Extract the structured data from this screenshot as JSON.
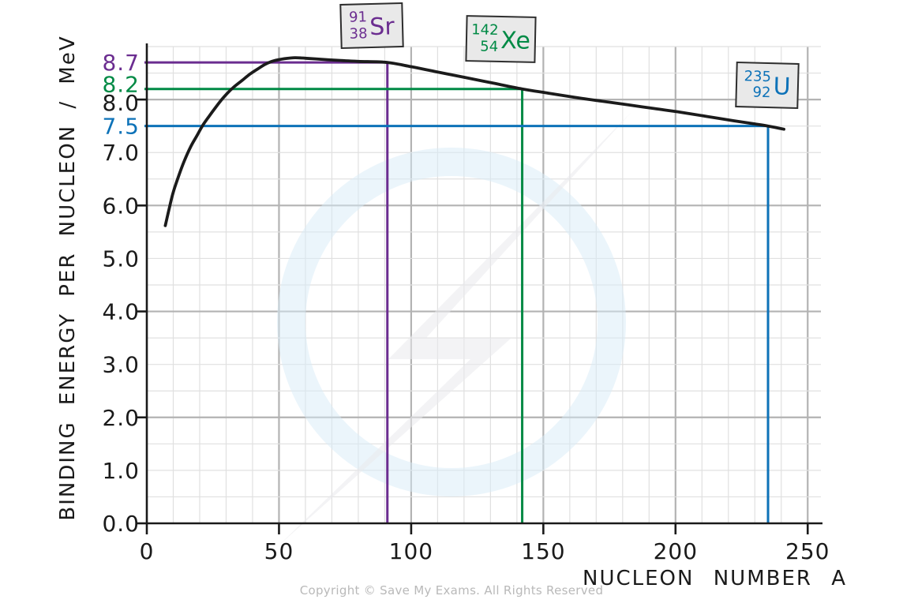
{
  "footer": {
    "copyright_text": "Copyright © Save My Exams. All Rights Reserved"
  },
  "chart_data": {
    "type": "line",
    "title": "",
    "xlabel": "NUCLEON NUMBER A",
    "ylabel": "BINDING ENERGY PER NUCLEON / MeV",
    "xlim": [
      0,
      255
    ],
    "ylim": [
      0,
      9.0
    ],
    "grid": {
      "shown": true,
      "x_minor_step": 10,
      "x_major_step": 50,
      "y_minor_step": 0.5,
      "y_major_values": [
        2,
        4,
        6,
        8
      ]
    },
    "x_ticks": [
      {
        "value": 0,
        "label": "0"
      },
      {
        "value": 50,
        "label": "50"
      },
      {
        "value": 100,
        "label": "100"
      },
      {
        "value": 150,
        "label": "150"
      },
      {
        "value": 200,
        "label": "200"
      },
      {
        "value": 250,
        "label": "250"
      }
    ],
    "y_ticks": [
      {
        "value": 0,
        "label": "0.0",
        "color": "#1a1a1a",
        "tick": true
      },
      {
        "value": 1,
        "label": "1.0",
        "color": "#1a1a1a",
        "tick": false
      },
      {
        "value": 2,
        "label": "2.0",
        "color": "#1a1a1a",
        "tick": true
      },
      {
        "value": 3,
        "label": "3.0",
        "color": "#1a1a1a",
        "tick": false
      },
      {
        "value": 4,
        "label": "4.0",
        "color": "#1a1a1a",
        "tick": true
      },
      {
        "value": 5,
        "label": "5.0",
        "color": "#1a1a1a",
        "tick": false
      },
      {
        "value": 6,
        "label": "6.0",
        "color": "#1a1a1a",
        "tick": true
      },
      {
        "value": 7,
        "label": "7.0",
        "color": "#1a1a1a",
        "tick": false
      },
      {
        "value": 7.5,
        "label": "7.5",
        "color": "#0d72b8",
        "tick": false
      },
      {
        "value": 8,
        "label": "8.0",
        "color": "#1a1a1a",
        "tick": true
      },
      {
        "value": 8.2,
        "label": "8.2",
        "color": "#008a45",
        "tick": false
      },
      {
        "value": 8.7,
        "label": "8.7",
        "color": "#6b2d90",
        "tick": false
      }
    ],
    "series": [
      {
        "name": "binding energy per nucleon curve",
        "color": "#1b1b1b",
        "points": [
          [
            7,
            5.62
          ],
          [
            8.5,
            5.95
          ],
          [
            10,
            6.25
          ],
          [
            12,
            6.55
          ],
          [
            14,
            6.82
          ],
          [
            16.5,
            7.1
          ],
          [
            19,
            7.32
          ],
          [
            21,
            7.5
          ],
          [
            23.5,
            7.68
          ],
          [
            26,
            7.85
          ],
          [
            28,
            7.98
          ],
          [
            30.5,
            8.12
          ],
          [
            33,
            8.24
          ],
          [
            36,
            8.36
          ],
          [
            39,
            8.48
          ],
          [
            42,
            8.58
          ],
          [
            45,
            8.67
          ],
          [
            48,
            8.73
          ],
          [
            52,
            8.77
          ],
          [
            56,
            8.79
          ],
          [
            60,
            8.78
          ],
          [
            66,
            8.76
          ],
          [
            72,
            8.74
          ],
          [
            80,
            8.72
          ],
          [
            91,
            8.7
          ],
          [
            100,
            8.62
          ],
          [
            110,
            8.52
          ],
          [
            120,
            8.42
          ],
          [
            131,
            8.31
          ],
          [
            142,
            8.2
          ],
          [
            152,
            8.12
          ],
          [
            162,
            8.04
          ],
          [
            172,
            7.97
          ],
          [
            182,
            7.9
          ],
          [
            192,
            7.83
          ],
          [
            202,
            7.76
          ],
          [
            212,
            7.68
          ],
          [
            222,
            7.6
          ],
          [
            230,
            7.54
          ],
          [
            235,
            7.5
          ],
          [
            241,
            7.44
          ]
        ]
      }
    ],
    "annotations": [
      {
        "isotope": "Strontium-91",
        "mass_number": "91",
        "atomic_number": "38",
        "symbol": "Sr",
        "nucleon_number": 91,
        "binding_energy_per_nucleon": 8.7,
        "color": "#6b2d90"
      },
      {
        "isotope": "Xenon-142",
        "mass_number": "142",
        "atomic_number": "54",
        "symbol": "Xe",
        "nucleon_number": 142,
        "binding_energy_per_nucleon": 8.2,
        "color": "#008a45"
      },
      {
        "isotope": "Uranium-235",
        "mass_number": "235",
        "atomic_number": "92",
        "symbol": "U",
        "nucleon_number": 235,
        "binding_energy_per_nucleon": 7.5,
        "color": "#0d72b8"
      }
    ]
  }
}
